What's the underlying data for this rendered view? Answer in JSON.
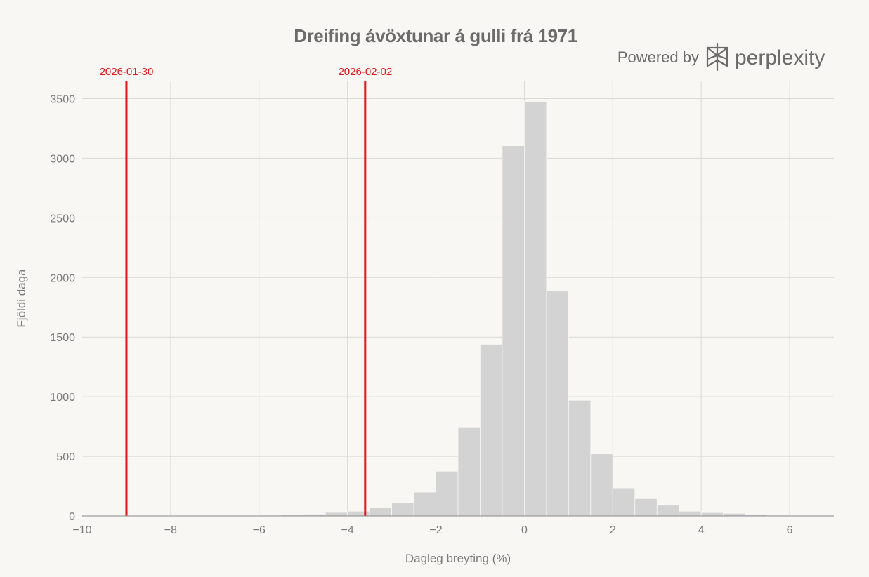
{
  "chart_data": {
    "type": "bar",
    "title": "Dreifing ávöxtunar á gulli frá 1971",
    "xlabel": "Dagleg breyting (%)",
    "ylabel": "Fjöldi daga",
    "xlim": [
      -10,
      7
    ],
    "ylim": [
      0,
      3650
    ],
    "xticks": [
      -10,
      -8,
      -6,
      -4,
      -2,
      0,
      2,
      4,
      6
    ],
    "xtick_labels": [
      "−10",
      "−8",
      "−6",
      "−4",
      "−2",
      "0",
      "2",
      "4",
      "6"
    ],
    "yticks": [
      0,
      500,
      1000,
      1500,
      2000,
      2500,
      3000,
      3500
    ],
    "ytick_labels": [
      "0",
      "500",
      "1000",
      "1500",
      "2000",
      "2500",
      "3000",
      "3500"
    ],
    "grid": true,
    "bins": [
      {
        "start": -10.0,
        "end": -9.5,
        "count": 2
      },
      {
        "start": -9.5,
        "end": -9.0,
        "count": 2
      },
      {
        "start": -9.0,
        "end": -8.5,
        "count": 2
      },
      {
        "start": -8.5,
        "end": -8.0,
        "count": 3
      },
      {
        "start": -8.0,
        "end": -7.5,
        "count": 2
      },
      {
        "start": -7.5,
        "end": -7.0,
        "count": 2
      },
      {
        "start": -7.0,
        "end": -6.5,
        "count": 4
      },
      {
        "start": -6.5,
        "end": -6.0,
        "count": 5
      },
      {
        "start": -6.0,
        "end": -5.5,
        "count": 6
      },
      {
        "start": -5.5,
        "end": -5.0,
        "count": 8
      },
      {
        "start": -5.0,
        "end": -4.5,
        "count": 15
      },
      {
        "start": -4.5,
        "end": -4.0,
        "count": 30
      },
      {
        "start": -4.0,
        "end": -3.5,
        "count": 40
      },
      {
        "start": -3.5,
        "end": -3.0,
        "count": 70
      },
      {
        "start": -3.0,
        "end": -2.5,
        "count": 110
      },
      {
        "start": -2.5,
        "end": -2.0,
        "count": 200
      },
      {
        "start": -2.0,
        "end": -1.5,
        "count": 375
      },
      {
        "start": -1.5,
        "end": -1.0,
        "count": 740
      },
      {
        "start": -1.0,
        "end": -0.5,
        "count": 1440
      },
      {
        "start": -0.5,
        "end": 0.0,
        "count": 3105
      },
      {
        "start": 0.0,
        "end": 0.5,
        "count": 3475
      },
      {
        "start": 0.5,
        "end": 1.0,
        "count": 1890
      },
      {
        "start": 1.0,
        "end": 1.5,
        "count": 970
      },
      {
        "start": 1.5,
        "end": 2.0,
        "count": 520
      },
      {
        "start": 2.0,
        "end": 2.5,
        "count": 235
      },
      {
        "start": 2.5,
        "end": 3.0,
        "count": 145
      },
      {
        "start": 3.0,
        "end": 3.5,
        "count": 90
      },
      {
        "start": 3.5,
        "end": 4.0,
        "count": 40
      },
      {
        "start": 4.0,
        "end": 4.5,
        "count": 28
      },
      {
        "start": 4.5,
        "end": 5.0,
        "count": 22
      },
      {
        "start": 5.0,
        "end": 5.5,
        "count": 12
      },
      {
        "start": 5.5,
        "end": 6.0,
        "count": 6
      },
      {
        "start": 6.0,
        "end": 6.5,
        "count": 3
      },
      {
        "start": 6.5,
        "end": 7.0,
        "count": 2
      }
    ],
    "reference_lines": [
      {
        "label": "2026-01-30",
        "x": -9.0
      },
      {
        "label": "2026-02-02",
        "x": -3.6
      }
    ],
    "colors": {
      "bar": "#d3d3d3",
      "reference": "#e8141b",
      "background": "#f8f7f3",
      "text": "#6b6b6b"
    }
  },
  "branding": {
    "prefix": "Powered by",
    "name": "perplexity",
    "icon": "perplexity-logo-icon"
  }
}
